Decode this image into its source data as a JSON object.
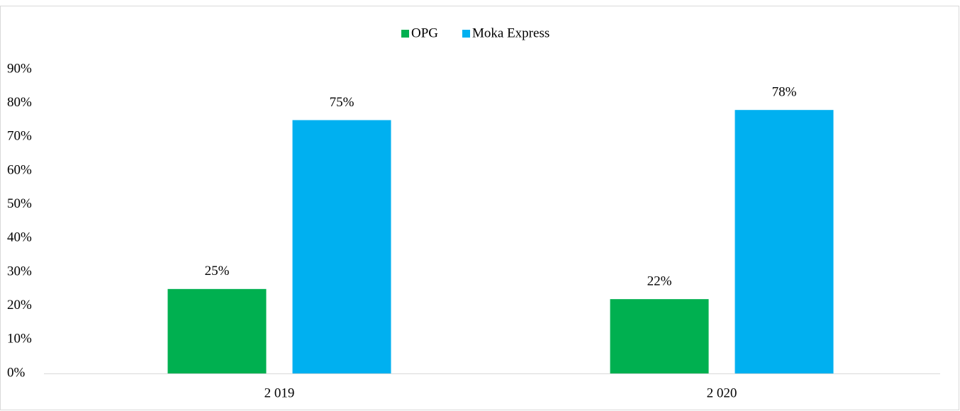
{
  "chart_data": {
    "type": "bar",
    "categories": [
      "2 019",
      "2 020"
    ],
    "series": [
      {
        "name": "OPG",
        "color": "#00b050",
        "values": [
          25,
          22
        ],
        "value_labels": [
          "25%",
          "22%"
        ]
      },
      {
        "name": "Moka Express",
        "color": "#00b0f0",
        "values": [
          75,
          78
        ],
        "value_labels": [
          "75%",
          "78%"
        ]
      }
    ],
    "ylim": [
      0,
      90
    ],
    "yticks": [
      {
        "value": 0,
        "label": "0%"
      },
      {
        "value": 10,
        "label": "10%"
      },
      {
        "value": 20,
        "label": "20%"
      },
      {
        "value": 30,
        "label": "30%"
      },
      {
        "value": 40,
        "label": "40%"
      },
      {
        "value": 50,
        "label": "50%"
      },
      {
        "value": 60,
        "label": "60%"
      },
      {
        "value": 70,
        "label": "70%"
      },
      {
        "value": 80,
        "label": "80%"
      },
      {
        "value": 90,
        "label": "90%"
      }
    ],
    "legend": "top"
  }
}
